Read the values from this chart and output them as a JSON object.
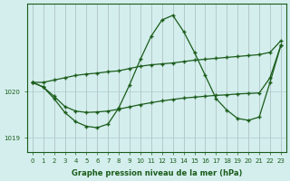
{
  "background_color": "#d4eeed",
  "grid_color": "#aacccc",
  "line_color": "#1a5c1a",
  "marker_color": "#1a5c1a",
  "xlabel": "Graphe pression niveau de la mer (hPa)",
  "ylabel": "",
  "xlim": [
    -0.5,
    23.5
  ],
  "ylim": [
    1018.7,
    1021.9
  ],
  "yticks": [
    1019,
    1020
  ],
  "xticks": [
    0,
    1,
    2,
    3,
    4,
    5,
    6,
    7,
    8,
    9,
    10,
    11,
    12,
    13,
    14,
    15,
    16,
    17,
    18,
    19,
    20,
    21,
    22,
    23
  ],
  "series1": {
    "x": [
      0,
      1,
      2,
      3,
      4,
      5,
      6,
      7,
      8,
      9,
      10,
      11,
      12,
      13,
      14,
      15,
      16,
      17,
      18,
      19,
      20,
      21,
      22,
      23
    ],
    "y": [
      1020.2,
      1020.2,
      1020.25,
      1020.3,
      1020.35,
      1020.38,
      1020.4,
      1020.43,
      1020.45,
      1020.5,
      1020.55,
      1020.58,
      1020.6,
      1020.62,
      1020.65,
      1020.68,
      1020.7,
      1020.72,
      1020.74,
      1020.76,
      1020.78,
      1020.8,
      1020.85,
      1021.1
    ]
  },
  "series2": {
    "x": [
      0,
      1,
      2,
      3,
      4,
      5,
      6,
      7,
      8,
      9,
      10,
      11,
      12,
      13,
      14,
      15,
      16,
      17,
      18,
      19,
      20,
      21,
      22,
      23
    ],
    "y": [
      1020.2,
      1020.1,
      1019.85,
      1019.55,
      1019.35,
      1019.25,
      1019.22,
      1019.3,
      1019.65,
      1020.15,
      1020.7,
      1021.2,
      1021.55,
      1021.65,
      1021.3,
      1020.85,
      1020.35,
      1019.85,
      1019.6,
      1019.42,
      1019.38,
      1019.45,
      1020.2,
      1021.0
    ]
  },
  "series3": {
    "x": [
      0,
      1,
      2,
      3,
      4,
      5,
      6,
      7,
      8,
      9,
      10,
      11,
      12,
      13,
      14,
      15,
      16,
      17,
      18,
      19,
      20,
      21,
      22,
      23
    ],
    "y": [
      1020.2,
      1020.1,
      1019.9,
      1019.68,
      1019.58,
      1019.55,
      1019.56,
      1019.58,
      1019.62,
      1019.67,
      1019.72,
      1019.76,
      1019.8,
      1019.83,
      1019.86,
      1019.88,
      1019.9,
      1019.92,
      1019.93,
      1019.95,
      1019.96,
      1019.97,
      1020.3,
      1021.0
    ]
  }
}
